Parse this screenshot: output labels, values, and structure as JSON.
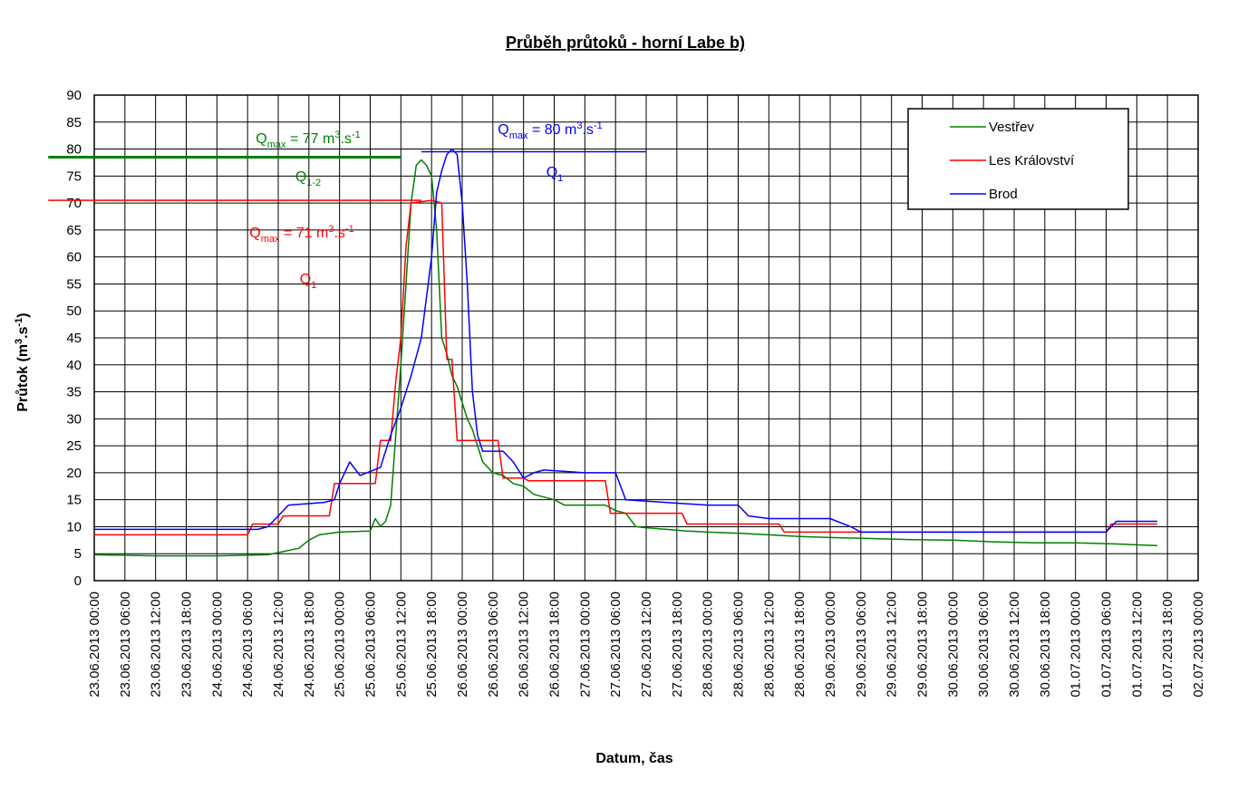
{
  "chart_data": {
    "type": "line",
    "title": "Průběh průtoků - horní Labe b)",
    "xlabel": "Datum, čas",
    "ylabel": {
      "main": "Průtok (m",
      "sup1": "3",
      "mid": ".s",
      "sup2": "-1",
      "end": ")"
    },
    "ylim": [
      0,
      90
    ],
    "y_ticks": [
      0,
      5,
      10,
      15,
      20,
      25,
      30,
      35,
      40,
      45,
      50,
      55,
      60,
      65,
      70,
      75,
      80,
      85,
      90
    ],
    "x_tick_labels": [
      "23.06.2013 00:00",
      "23.06.2013 06:00",
      "23.06.2013 12:00",
      "23.06.2013 18:00",
      "24.06.2013 00:00",
      "24.06.2013 06:00",
      "24.06.2013 12:00",
      "24.06.2013 18:00",
      "25.06.2013 00:00",
      "25.06.2013 06:00",
      "25.06.2013 12:00",
      "25.06.2013 18:00",
      "26.06.2013 00:00",
      "26.06.2013 06:00",
      "26.06.2013 12:00",
      "26.06.2013 18:00",
      "27.06.2013 00:00",
      "27.06.2013 06:00",
      "27.06.2013 12:00",
      "27.06.2013 18:00",
      "28.06.2013 00:00",
      "28.06.2013 06:00",
      "28.06.2013 12:00",
      "28.06.2013 18:00",
      "29.06.2013 00:00",
      "29.06.2013 06:00",
      "29.06.2013 12:00",
      "29.06.2013 18:00",
      "30.06.2013 00:00",
      "30.06.2013 06:00",
      "30.06.2013 12:00",
      "30.06.2013 18:00",
      "01.07.2013 00:00",
      "01.07.2013 06:00",
      "01.07.2013 12:00",
      "01.07.2013 18:00",
      "02.07.2013 00:00"
    ],
    "x_unit_note": "x values are hours after 23.06.2013 00:00",
    "grid": true,
    "legend_position": "top-right",
    "colors": {
      "Vestřev": "#008000",
      "Les Království": "#ff0000",
      "Brod": "#0000ff"
    },
    "series": [
      {
        "name": "Vestřev",
        "color": "#008000",
        "points": [
          [
            0,
            4.8
          ],
          [
            12,
            4.6
          ],
          [
            24,
            4.6
          ],
          [
            34,
            4.8
          ],
          [
            36,
            5.2
          ],
          [
            40,
            6
          ],
          [
            42,
            7.5
          ],
          [
            44,
            8.5
          ],
          [
            48,
            9
          ],
          [
            54,
            9.2
          ],
          [
            55,
            11.5
          ],
          [
            56,
            10
          ],
          [
            57,
            11
          ],
          [
            58,
            14
          ],
          [
            60,
            40
          ],
          [
            61,
            55
          ],
          [
            62,
            70
          ],
          [
            63,
            77
          ],
          [
            64,
            78
          ],
          [
            65,
            77
          ],
          [
            66,
            75
          ],
          [
            67,
            65
          ],
          [
            68,
            45
          ],
          [
            69,
            42
          ],
          [
            70,
            38
          ],
          [
            71,
            36
          ],
          [
            72,
            33
          ],
          [
            73,
            30
          ],
          [
            74,
            28
          ],
          [
            75,
            25
          ],
          [
            76,
            22
          ],
          [
            78,
            20
          ],
          [
            80,
            19.5
          ],
          [
            82,
            18
          ],
          [
            84,
            17.5
          ],
          [
            86,
            16
          ],
          [
            88,
            15.5
          ],
          [
            90,
            15
          ],
          [
            92,
            14
          ],
          [
            96,
            14
          ],
          [
            100,
            14
          ],
          [
            102,
            13
          ],
          [
            104,
            12.5
          ],
          [
            106,
            10
          ],
          [
            108,
            9.8
          ],
          [
            112,
            9.5
          ],
          [
            116,
            9.2
          ],
          [
            120,
            9
          ],
          [
            126,
            8.8
          ],
          [
            132,
            8.5
          ],
          [
            138,
            8.2
          ],
          [
            144,
            8
          ],
          [
            152,
            7.8
          ],
          [
            160,
            7.6
          ],
          [
            168,
            7.5
          ],
          [
            176,
            7.2
          ],
          [
            184,
            7
          ],
          [
            192,
            7
          ],
          [
            200,
            6.8
          ],
          [
            208,
            6.5
          ]
        ]
      },
      {
        "name": "Les Království",
        "color": "#ff0000",
        "points": [
          [
            0,
            8.5
          ],
          [
            30,
            8.5
          ],
          [
            31,
            10.5
          ],
          [
            36,
            10.5
          ],
          [
            37,
            12
          ],
          [
            46,
            12
          ],
          [
            47,
            18
          ],
          [
            55,
            18
          ],
          [
            56,
            26
          ],
          [
            58,
            26
          ],
          [
            59,
            37
          ],
          [
            60,
            45
          ],
          [
            61,
            62
          ],
          [
            62,
            70
          ],
          [
            66,
            70.5
          ],
          [
            68,
            70
          ],
          [
            69,
            41
          ],
          [
            70,
            41
          ],
          [
            71,
            26
          ],
          [
            79,
            26
          ],
          [
            80,
            19
          ],
          [
            84,
            19
          ],
          [
            85,
            18.5
          ],
          [
            100,
            18.5
          ],
          [
            101,
            12.5
          ],
          [
            115,
            12.5
          ],
          [
            116,
            10.5
          ],
          [
            134,
            10.5
          ],
          [
            135,
            9
          ],
          [
            198,
            9
          ],
          [
            199,
            10.5
          ],
          [
            208,
            10.5
          ]
        ]
      },
      {
        "name": "Brod",
        "color": "#0000ff",
        "points": [
          [
            0,
            9.5
          ],
          [
            32,
            9.5
          ],
          [
            34,
            10
          ],
          [
            36,
            12
          ],
          [
            38,
            14
          ],
          [
            45,
            14.5
          ],
          [
            47,
            15
          ],
          [
            48,
            18
          ],
          [
            50,
            22
          ],
          [
            52,
            19.5
          ],
          [
            56,
            21
          ],
          [
            58,
            27
          ],
          [
            60,
            32
          ],
          [
            62,
            38
          ],
          [
            64,
            45
          ],
          [
            66,
            60
          ],
          [
            67,
            72
          ],
          [
            68,
            76
          ],
          [
            69,
            79
          ],
          [
            70,
            80
          ],
          [
            71,
            79
          ],
          [
            72,
            70
          ],
          [
            73,
            55
          ],
          [
            74,
            35
          ],
          [
            75,
            27
          ],
          [
            76,
            24
          ],
          [
            80,
            24
          ],
          [
            82,
            22
          ],
          [
            84,
            19
          ],
          [
            86,
            20
          ],
          [
            88,
            20.5
          ],
          [
            96,
            20
          ],
          [
            102,
            20
          ],
          [
            104,
            15
          ],
          [
            120,
            14
          ],
          [
            126,
            14
          ],
          [
            128,
            12
          ],
          [
            132,
            11.5
          ],
          [
            144,
            11.5
          ],
          [
            148,
            10
          ],
          [
            150,
            9
          ],
          [
            168,
            9
          ],
          [
            184,
            9
          ],
          [
            198,
            9
          ],
          [
            200,
            11
          ],
          [
            208,
            11
          ]
        ]
      }
    ],
    "annotations": [
      {
        "color": "#008000",
        "pre": "Q",
        "sub": "max",
        "post": " = 77 m",
        "sup": "3",
        "post2": ".s",
        "sup2": "-1"
      },
      {
        "color": "#0000ff",
        "pre": "Q",
        "sub": "max",
        "post": " = 80 m",
        "sup": "3",
        "post2": ".s",
        "sup2": "-1"
      },
      {
        "color": "#ff0000",
        "pre": "Q",
        "sub": "max",
        "post": " = 71 m",
        "sup": "3",
        "post2": ".s",
        "sup2": "-1"
      },
      {
        "color": "#008000",
        "pre": "Q",
        "sub": "1-2"
      },
      {
        "color": "#0000ff",
        "pre": "Q",
        "sub": "1"
      },
      {
        "color": "#ff0000",
        "pre": "Q",
        "sub": "1"
      }
    ],
    "reference_lines": [
      {
        "color": "#008000",
        "y": 78.5,
        "x_start_hours": -9,
        "x_end_hours": 60
      },
      {
        "color": "#ff0000",
        "y": 70.5,
        "x_start_hours": -9,
        "x_end_hours": 64
      },
      {
        "color": "#0000ff",
        "y": 79.5,
        "x_start_hours": 64,
        "x_end_hours": 108
      }
    ]
  }
}
